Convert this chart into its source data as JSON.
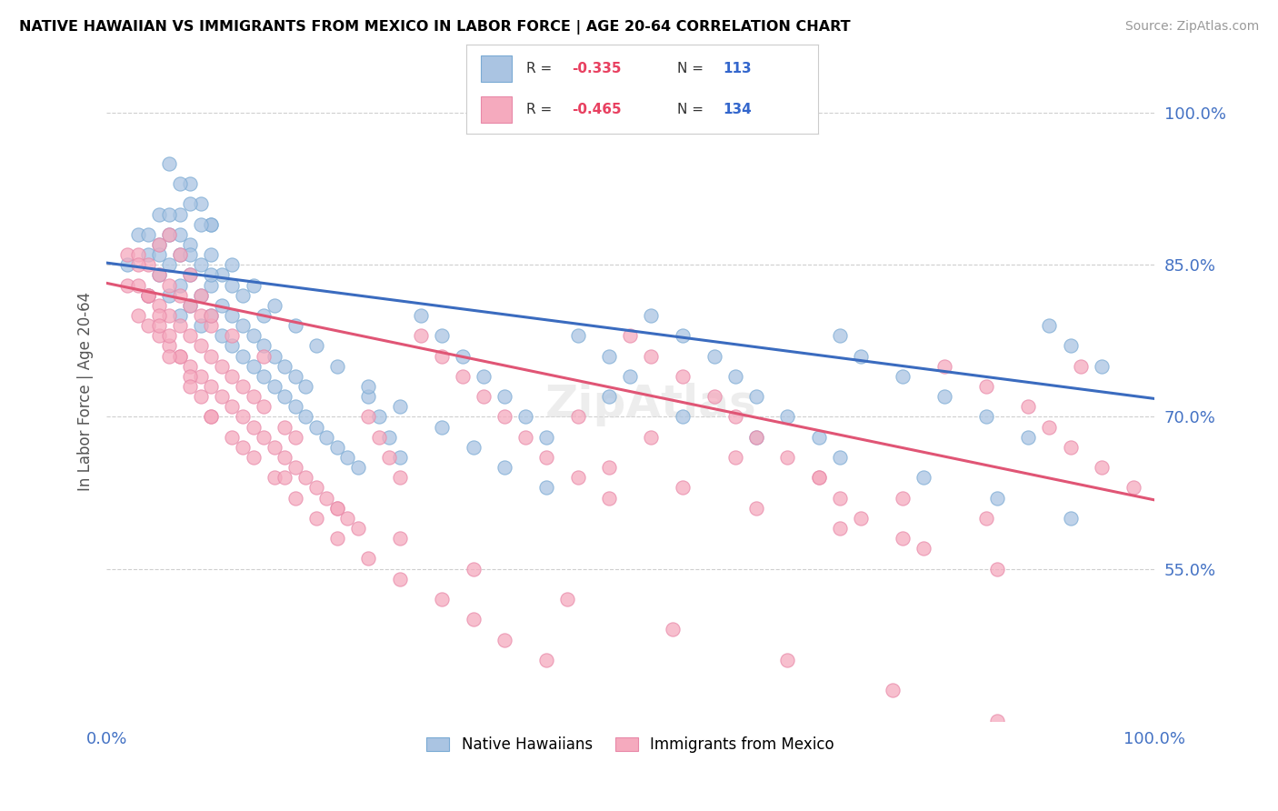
{
  "title": "NATIVE HAWAIIAN VS IMMIGRANTS FROM MEXICO IN LABOR FORCE | AGE 20-64 CORRELATION CHART",
  "source": "Source: ZipAtlas.com",
  "ylabel": "In Labor Force | Age 20-64",
  "xlim": [
    0.0,
    1.0
  ],
  "ylim": [
    0.4,
    1.05
  ],
  "yticks": [
    0.55,
    0.7,
    0.85,
    1.0
  ],
  "ytick_labels": [
    "55.0%",
    "70.0%",
    "85.0%",
    "100.0%"
  ],
  "xticks": [
    0.0,
    1.0
  ],
  "xtick_labels": [
    "0.0%",
    "100.0%"
  ],
  "blue_R": -0.335,
  "blue_N": 113,
  "pink_R": -0.465,
  "pink_N": 134,
  "blue_color": "#aac4e2",
  "pink_color": "#f5aabe",
  "blue_line_color": "#3a6bbf",
  "pink_line_color": "#e05575",
  "blue_edge_color": "#7aaad4",
  "pink_edge_color": "#e888a8",
  "legend_label_blue": "Native Hawaiians",
  "legend_label_pink": "Immigrants from Mexico",
  "background_color": "#ffffff",
  "grid_color": "#bbbbbb",
  "title_color": "#000000",
  "axis_label_color": "#4472c4",
  "blue_line_start_y": 0.852,
  "blue_line_end_y": 0.718,
  "pink_line_start_y": 0.832,
  "pink_line_end_y": 0.618,
  "blue_scatter_x": [
    0.02,
    0.03,
    0.04,
    0.04,
    0.05,
    0.05,
    0.05,
    0.06,
    0.06,
    0.06,
    0.07,
    0.07,
    0.07,
    0.07,
    0.08,
    0.08,
    0.08,
    0.09,
    0.09,
    0.09,
    0.1,
    0.1,
    0.1,
    0.1,
    0.11,
    0.11,
    0.11,
    0.12,
    0.12,
    0.12,
    0.13,
    0.13,
    0.13,
    0.14,
    0.14,
    0.15,
    0.15,
    0.15,
    0.16,
    0.16,
    0.17,
    0.17,
    0.18,
    0.18,
    0.19,
    0.19,
    0.2,
    0.21,
    0.22,
    0.23,
    0.24,
    0.25,
    0.26,
    0.27,
    0.28,
    0.3,
    0.32,
    0.34,
    0.36,
    0.38,
    0.4,
    0.42,
    0.45,
    0.48,
    0.5,
    0.52,
    0.55,
    0.58,
    0.6,
    0.62,
    0.65,
    0.68,
    0.7,
    0.72,
    0.76,
    0.8,
    0.84,
    0.88,
    0.9,
    0.92,
    0.95,
    0.08,
    0.09,
    0.1,
    0.06,
    0.07,
    0.08,
    0.09,
    0.12,
    0.14,
    0.16,
    0.18,
    0.2,
    0.22,
    0.25,
    0.28,
    0.32,
    0.35,
    0.38,
    0.42,
    0.48,
    0.55,
    0.62,
    0.7,
    0.78,
    0.85,
    0.92,
    0.04,
    0.05,
    0.06,
    0.07,
    0.08,
    0.1
  ],
  "blue_scatter_y": [
    0.85,
    0.88,
    0.82,
    0.86,
    0.84,
    0.87,
    0.9,
    0.82,
    0.85,
    0.88,
    0.8,
    0.83,
    0.86,
    0.9,
    0.81,
    0.84,
    0.87,
    0.79,
    0.82,
    0.85,
    0.8,
    0.83,
    0.86,
    0.89,
    0.78,
    0.81,
    0.84,
    0.77,
    0.8,
    0.83,
    0.76,
    0.79,
    0.82,
    0.75,
    0.78,
    0.74,
    0.77,
    0.8,
    0.73,
    0.76,
    0.72,
    0.75,
    0.71,
    0.74,
    0.7,
    0.73,
    0.69,
    0.68,
    0.67,
    0.66,
    0.65,
    0.72,
    0.7,
    0.68,
    0.66,
    0.8,
    0.78,
    0.76,
    0.74,
    0.72,
    0.7,
    0.68,
    0.78,
    0.76,
    0.74,
    0.8,
    0.78,
    0.76,
    0.74,
    0.72,
    0.7,
    0.68,
    0.78,
    0.76,
    0.74,
    0.72,
    0.7,
    0.68,
    0.79,
    0.77,
    0.75,
    0.93,
    0.91,
    0.89,
    0.95,
    0.93,
    0.91,
    0.89,
    0.85,
    0.83,
    0.81,
    0.79,
    0.77,
    0.75,
    0.73,
    0.71,
    0.69,
    0.67,
    0.65,
    0.63,
    0.72,
    0.7,
    0.68,
    0.66,
    0.64,
    0.62,
    0.6,
    0.88,
    0.86,
    0.9,
    0.88,
    0.86,
    0.84
  ],
  "pink_scatter_x": [
    0.02,
    0.02,
    0.03,
    0.03,
    0.03,
    0.04,
    0.04,
    0.04,
    0.05,
    0.05,
    0.05,
    0.05,
    0.06,
    0.06,
    0.06,
    0.07,
    0.07,
    0.07,
    0.08,
    0.08,
    0.08,
    0.09,
    0.09,
    0.09,
    0.1,
    0.1,
    0.1,
    0.11,
    0.11,
    0.12,
    0.12,
    0.13,
    0.13,
    0.14,
    0.14,
    0.15,
    0.15,
    0.16,
    0.17,
    0.17,
    0.18,
    0.18,
    0.19,
    0.2,
    0.21,
    0.22,
    0.23,
    0.24,
    0.25,
    0.26,
    0.27,
    0.28,
    0.3,
    0.32,
    0.34,
    0.36,
    0.38,
    0.4,
    0.42,
    0.45,
    0.48,
    0.5,
    0.52,
    0.55,
    0.58,
    0.6,
    0.62,
    0.65,
    0.68,
    0.7,
    0.72,
    0.76,
    0.8,
    0.84,
    0.88,
    0.9,
    0.92,
    0.95,
    0.98,
    0.04,
    0.05,
    0.06,
    0.07,
    0.08,
    0.09,
    0.1,
    0.12,
    0.14,
    0.16,
    0.18,
    0.2,
    0.22,
    0.25,
    0.28,
    0.32,
    0.35,
    0.38,
    0.42,
    0.48,
    0.55,
    0.62,
    0.7,
    0.78,
    0.85,
    0.03,
    0.04,
    0.05,
    0.06,
    0.08,
    0.1,
    0.13,
    0.17,
    0.22,
    0.28,
    0.35,
    0.44,
    0.54,
    0.65,
    0.75,
    0.85,
    0.93,
    0.06,
    0.07,
    0.08,
    0.09,
    0.1,
    0.12,
    0.15,
    0.45,
    0.52,
    0.6,
    0.68,
    0.76,
    0.84
  ],
  "pink_scatter_y": [
    0.83,
    0.86,
    0.8,
    0.83,
    0.86,
    0.79,
    0.82,
    0.85,
    0.78,
    0.81,
    0.84,
    0.87,
    0.77,
    0.8,
    0.83,
    0.76,
    0.79,
    0.82,
    0.75,
    0.78,
    0.81,
    0.74,
    0.77,
    0.8,
    0.73,
    0.76,
    0.79,
    0.72,
    0.75,
    0.71,
    0.74,
    0.7,
    0.73,
    0.69,
    0.72,
    0.68,
    0.71,
    0.67,
    0.66,
    0.69,
    0.65,
    0.68,
    0.64,
    0.63,
    0.62,
    0.61,
    0.6,
    0.59,
    0.7,
    0.68,
    0.66,
    0.64,
    0.78,
    0.76,
    0.74,
    0.72,
    0.7,
    0.68,
    0.66,
    0.64,
    0.62,
    0.78,
    0.76,
    0.74,
    0.72,
    0.7,
    0.68,
    0.66,
    0.64,
    0.62,
    0.6,
    0.58,
    0.75,
    0.73,
    0.71,
    0.69,
    0.67,
    0.65,
    0.63,
    0.82,
    0.8,
    0.78,
    0.76,
    0.74,
    0.72,
    0.7,
    0.68,
    0.66,
    0.64,
    0.62,
    0.6,
    0.58,
    0.56,
    0.54,
    0.52,
    0.5,
    0.48,
    0.46,
    0.65,
    0.63,
    0.61,
    0.59,
    0.57,
    0.55,
    0.85,
    0.82,
    0.79,
    0.76,
    0.73,
    0.7,
    0.67,
    0.64,
    0.61,
    0.58,
    0.55,
    0.52,
    0.49,
    0.46,
    0.43,
    0.4,
    0.75,
    0.88,
    0.86,
    0.84,
    0.82,
    0.8,
    0.78,
    0.76,
    0.7,
    0.68,
    0.66,
    0.64,
    0.62,
    0.6
  ]
}
